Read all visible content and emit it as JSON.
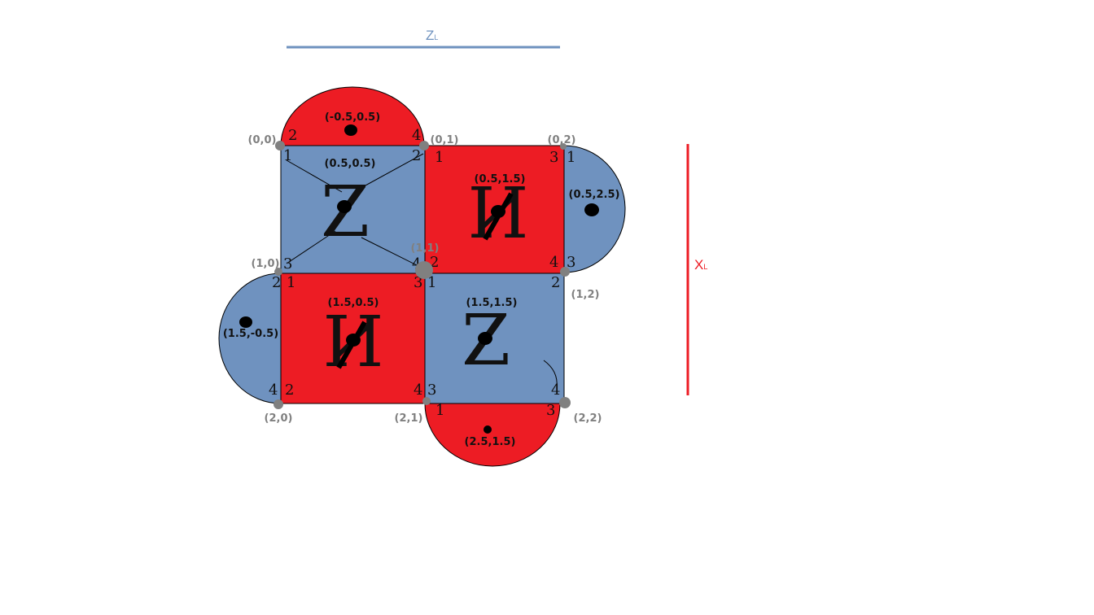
{
  "colors": {
    "z_region": "#6f92bf",
    "x_region": "#ed1c24",
    "vertex": "#808080",
    "outline": "#000000",
    "zl_line": "#6f92bf",
    "xl_line": "#ed1c24"
  },
  "logical_z": {
    "label": "Z",
    "subscript": "L"
  },
  "logical_x": {
    "label": "X",
    "subscript": "L"
  },
  "vertices": [
    "(0,0)",
    "(0,1)",
    "(0,2)",
    "(1,0)",
    "(1,1)",
    "(1,2)",
    "(2,0)",
    "(2,1)",
    "(2,2)"
  ],
  "plaquettes": [
    {
      "label": "(0.5,0.5)",
      "type": "Z",
      "symbol": "Z"
    },
    {
      "label": "(0.5,1.5)",
      "type": "X",
      "symbol": "И"
    },
    {
      "label": "(1.5,0.5)",
      "type": "X",
      "symbol": "И"
    },
    {
      "label": "(1.5,1.5)",
      "type": "Z",
      "symbol": "Z"
    }
  ],
  "boundary_stabilizers": [
    {
      "label": "(-0.5,0.5)",
      "type": "X"
    },
    {
      "label": "(0.5,2.5)",
      "type": "Z"
    },
    {
      "label": "(1.5,-0.5)",
      "type": "Z"
    },
    {
      "label": "(2.5,1.5)",
      "type": "X"
    }
  ],
  "qubit_order": {
    "top_half": [
      "2",
      "4"
    ],
    "sq00": [
      "1",
      "2",
      "3",
      "4"
    ],
    "sq01": [
      "1",
      "3",
      "2",
      "4"
    ],
    "right_half": [
      "1",
      "3"
    ],
    "sq10": [
      "1",
      "3",
      "2",
      "4"
    ],
    "left_half": [
      "2",
      "4"
    ],
    "sq11": [
      "1",
      "2",
      "3",
      "4"
    ],
    "bottom_half": [
      "1",
      "3"
    ]
  }
}
